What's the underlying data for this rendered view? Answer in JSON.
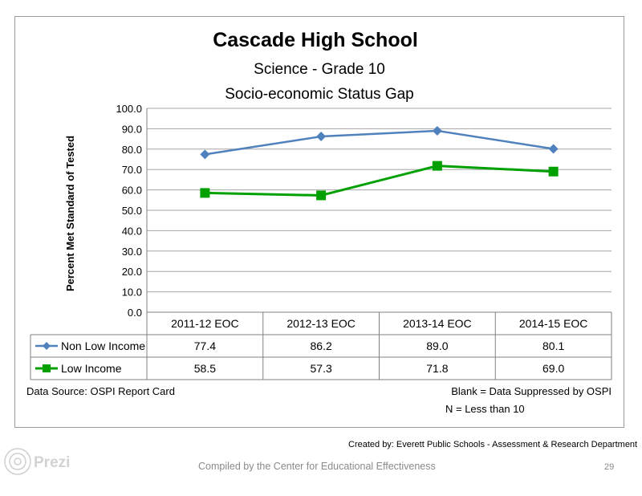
{
  "chart_data": {
    "type": "line",
    "title": "Cascade High School",
    "subtitle_lines": [
      "Science  - Grade 10",
      "Socio-economic Status Gap"
    ],
    "ylabel": "Percent Met Standard of Tested",
    "xlabel": "",
    "ylim": [
      0,
      100
    ],
    "y_ticks": [
      "0.0",
      "10.0",
      "20.0",
      "30.0",
      "40.0",
      "50.0",
      "60.0",
      "70.0",
      "80.0",
      "90.0",
      "100.0"
    ],
    "categories": [
      "2011-12 EOC",
      "2012-13 EOC",
      "2013-14 EOC",
      "2014-15 EOC"
    ],
    "grid": "horizontal",
    "legend": "data-table",
    "series": [
      {
        "name": "Non Low Income",
        "color": "#4f81bd",
        "marker": "diamond",
        "values": [
          77.4,
          86.2,
          89.0,
          80.1
        ],
        "labels": [
          "77.4",
          "86.2",
          "89.0",
          "80.1"
        ]
      },
      {
        "name": "Low Income",
        "color": "#00a000",
        "marker": "square",
        "values": [
          58.5,
          57.3,
          71.8,
          69.0
        ],
        "labels": [
          "58.5",
          "57.3",
          "71.8",
          "69.0"
        ]
      }
    ]
  },
  "footer": {
    "source": "Data Source: OSPI Report Card",
    "note_blank": "Blank = Data Suppressed by OSPI",
    "note_n": "N = Less than 10"
  },
  "page": {
    "created_by": "Created by: Everett Public Schools - Assessment & Research Department",
    "compiled_by": "Compiled by the Center for Educational Effectiveness",
    "page_number": "29",
    "logo_text": "Prezi"
  }
}
